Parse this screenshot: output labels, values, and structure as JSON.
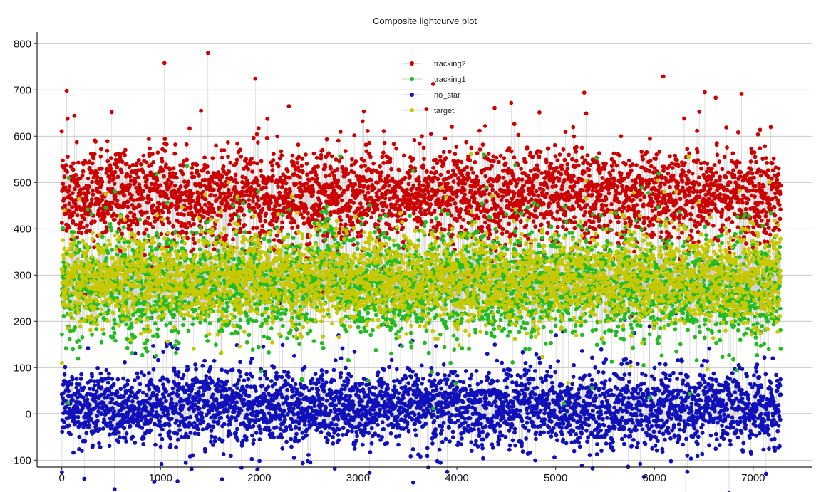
{
  "chart_data": {
    "type": "scatter",
    "title": "Composite lightcurve plot",
    "xlabel": "",
    "ylabel": "",
    "xlim": [
      -250,
      7600
    ],
    "ylim": [
      -115,
      825
    ],
    "x_ticks": [
      0,
      1000,
      2000,
      3000,
      4000,
      5000,
      6000,
      7000
    ],
    "y_ticks": [
      -100,
      0,
      100,
      200,
      300,
      400,
      500,
      600,
      700,
      800
    ],
    "grid": "horizontal",
    "legend_position": "top-center",
    "n_points_per_series": 7280,
    "connecting_line_color": "#c8c8c8",
    "series": [
      {
        "name": "tracking2",
        "color": "#cc0000",
        "baseline_mean": 470,
        "typical_range": [
          330,
          600
        ],
        "peaks": [
          {
            "x": 50,
            "y": 698
          },
          {
            "x": 1040,
            "y": 758
          },
          {
            "x": 1480,
            "y": 780
          },
          {
            "x": 1960,
            "y": 724
          },
          {
            "x": 2300,
            "y": 665
          },
          {
            "x": 4550,
            "y": 672
          },
          {
            "x": 5290,
            "y": 694
          },
          {
            "x": 6090,
            "y": 729
          },
          {
            "x": 6510,
            "y": 695
          },
          {
            "x": 6620,
            "y": 683
          }
        ]
      },
      {
        "name": "tracking1",
        "color": "#22bb22",
        "baseline_mean": 275,
        "typical_range": [
          140,
          440
        ],
        "dip": {
          "x_start": 2520,
          "x_end": 2850,
          "y_offset": 55
        }
      },
      {
        "name": "no_star",
        "color": "#1111bb",
        "baseline_mean": 15,
        "typical_range": [
          -90,
          130
        ]
      },
      {
        "name": "target",
        "color": "#c8c800",
        "baseline_mean": 290,
        "typical_range": [
          170,
          430
        ]
      }
    ]
  }
}
